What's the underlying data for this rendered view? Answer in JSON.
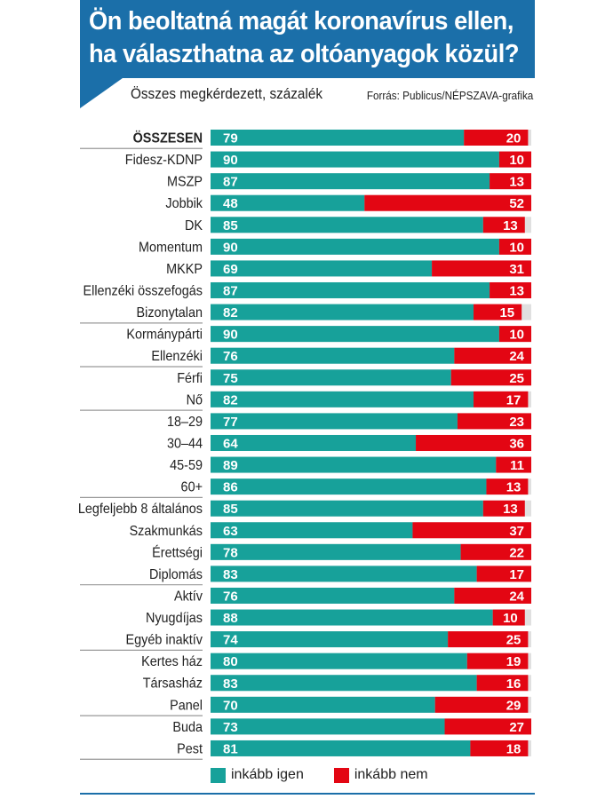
{
  "title": "Ön beoltatná magát koronavírus ellen, ha választhatna az oltóanyagok közül?",
  "title_lines": [
    "Ön beoltatná magát koronavírus ellen,",
    "ha választhatna az oltóanyagok közül?"
  ],
  "subtitle": "Összes megkérdezett, százalék",
  "source": "Forrás: Publicus/NÉPSZAVA-grafika",
  "colors": {
    "header": "#1b6fa9",
    "igen": "#17a19a",
    "nem": "#e30613",
    "remainder": "#e0e0e0"
  },
  "chart_data": {
    "type": "bar",
    "orientation": "horizontal-stacked",
    "xlim": [
      0,
      100
    ],
    "categories": [
      "ÖSSZESEN",
      "Fidesz-KDNP",
      "MSZP",
      "Jobbik",
      "DK",
      "Momentum",
      "MKKP",
      "Ellenzéki összefogás",
      "Bizonytalan",
      "Kormánypárti",
      "Ellenzéki",
      "Férfi",
      "Nő",
      "18–29",
      "30–44",
      "45-59",
      "60+",
      "Legfeljebb 8 általános",
      "Szakmunkás",
      "Érettségi",
      "Diplomás",
      "Aktív",
      "Nyugdíjas",
      "Egyéb inaktív",
      "Kertes ház",
      "Társasház",
      "Panel",
      "Buda",
      "Pest"
    ],
    "group_ends": [
      0,
      8,
      10,
      12,
      16,
      20,
      23,
      26,
      28
    ],
    "series": [
      {
        "name": "inkább igen",
        "values": [
          79,
          90,
          87,
          48,
          85,
          90,
          69,
          87,
          82,
          90,
          76,
          75,
          82,
          77,
          64,
          89,
          86,
          85,
          63,
          78,
          83,
          76,
          88,
          74,
          80,
          83,
          70,
          73,
          81
        ]
      },
      {
        "name": "inkább nem",
        "values": [
          20,
          10,
          13,
          52,
          13,
          10,
          31,
          13,
          15,
          10,
          24,
          25,
          17,
          23,
          36,
          11,
          13,
          13,
          37,
          22,
          17,
          24,
          10,
          25,
          19,
          16,
          29,
          27,
          18
        ]
      }
    ],
    "legend": "bottom"
  }
}
